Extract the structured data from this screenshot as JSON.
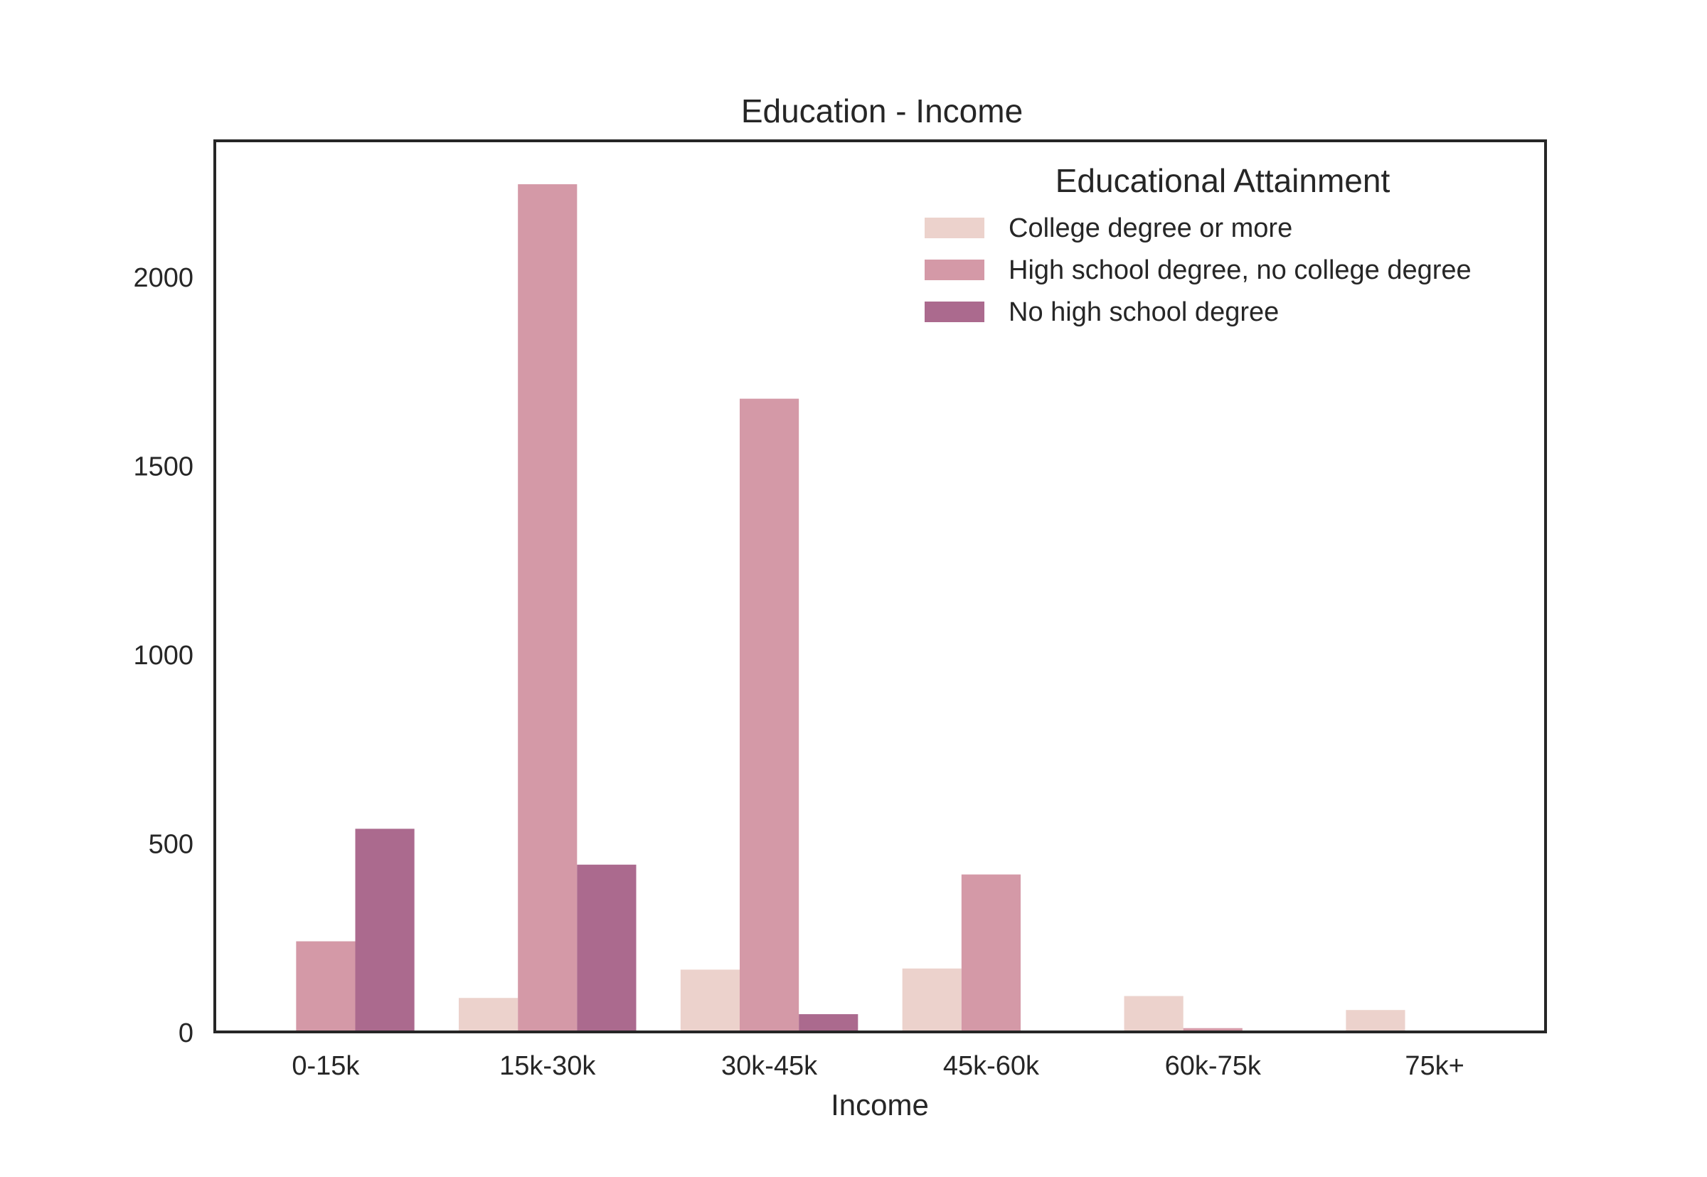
{
  "chart_data": {
    "type": "bar",
    "title": "Education - Income",
    "xlabel": "Income",
    "ylabel": "",
    "categories": [
      "0-15k",
      "15k-30k",
      "30k-45k",
      "45k-60k",
      "60k-75k",
      "75k+"
    ],
    "ylim": [
      0,
      2360
    ],
    "yticks": [
      0,
      500,
      1000,
      1500,
      2000
    ],
    "grid": false,
    "legend": {
      "title": "Educational Attainment",
      "position": "top-right"
    },
    "series": [
      {
        "name": "College degree or more",
        "color": "#ecd2cc",
        "values": [
          3,
          90,
          165,
          168,
          95,
          58
        ]
      },
      {
        "name": "High school degree, no college degree",
        "color": "#d499a7",
        "values": [
          240,
          2245,
          1677,
          417,
          10,
          0
        ]
      },
      {
        "name": "No high school degree",
        "color": "#ab6a8e",
        "values": [
          538,
          443,
          47,
          0,
          0,
          0
        ]
      }
    ]
  }
}
